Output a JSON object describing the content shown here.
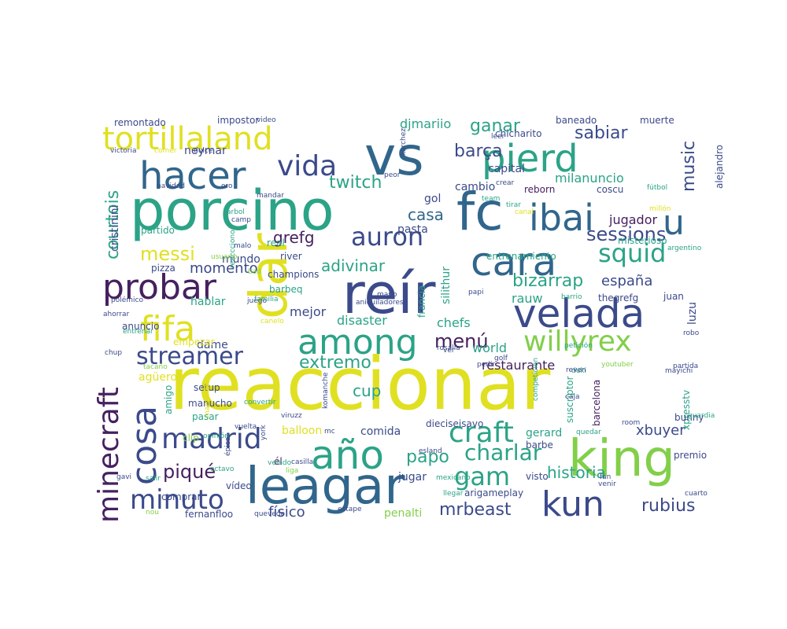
{
  "palette": {
    "y": "#e0e022",
    "g": "#82cf4a",
    "t": "#2ba387",
    "b": "#31668c",
    "n": "#3b4a8a",
    "p": "#46205f"
  },
  "words": [
    {
      "text": "reaccionar",
      "color": "y"
    },
    {
      "text": "porcino",
      "color": "t"
    },
    {
      "text": "vs",
      "color": "b"
    },
    {
      "text": "fc",
      "color": "b"
    },
    {
      "text": "reír",
      "color": "n"
    },
    {
      "text": "leagar",
      "color": "b"
    },
    {
      "text": "king",
      "color": "g"
    },
    {
      "text": "dar",
      "color": "y"
    },
    {
      "text": "pierd",
      "color": "t"
    },
    {
      "text": "cara",
      "color": "b"
    },
    {
      "text": "velada",
      "color": "n"
    },
    {
      "text": "among",
      "color": "t"
    },
    {
      "text": "año",
      "color": "t"
    },
    {
      "text": "ibai",
      "color": "b"
    },
    {
      "text": "u",
      "color": "b"
    },
    {
      "text": "hacer",
      "color": "b"
    },
    {
      "text": "tortillaland",
      "color": "y"
    },
    {
      "text": "probar",
      "color": "p"
    },
    {
      "text": "fifa",
      "color": "y"
    },
    {
      "text": "madrid",
      "color": "n"
    },
    {
      "text": "cosa",
      "color": "n"
    },
    {
      "text": "minecraft",
      "color": "p"
    },
    {
      "text": "kun",
      "color": "n"
    },
    {
      "text": "craft",
      "color": "t"
    },
    {
      "text": "willyrex",
      "color": "g"
    },
    {
      "text": "squid",
      "color": "t"
    },
    {
      "text": "auron",
      "color": "n"
    },
    {
      "text": "vida",
      "color": "n"
    },
    {
      "text": "minuto",
      "color": "n"
    },
    {
      "text": "streamer",
      "color": "n"
    },
    {
      "text": "gam",
      "color": "t"
    },
    {
      "text": "charlar",
      "color": "t"
    },
    {
      "text": "sessions",
      "color": "n"
    },
    {
      "text": "bizarrap",
      "color": "t"
    },
    {
      "text": "music",
      "color": "n"
    },
    {
      "text": "sabiar",
      "color": "n"
    },
    {
      "text": "ganar",
      "color": "t"
    },
    {
      "text": "messi",
      "color": "y"
    },
    {
      "text": "piqué",
      "color": "p"
    },
    {
      "text": "twitch",
      "color": "t"
    },
    {
      "text": "menú",
      "color": "p"
    },
    {
      "text": "extremo",
      "color": "t"
    },
    {
      "text": "mrbeast",
      "color": "n"
    },
    {
      "text": "rubius",
      "color": "n"
    },
    {
      "text": "historia",
      "color": "t"
    },
    {
      "text": "papo",
      "color": "t"
    },
    {
      "text": "cup",
      "color": "t"
    },
    {
      "text": "courtois",
      "color": "t"
    },
    {
      "text": "barça",
      "color": "n"
    },
    {
      "text": "grefg",
      "color": "p"
    },
    {
      "text": "adivinar",
      "color": "t"
    },
    {
      "text": "casa",
      "color": "b"
    },
    {
      "text": "momento",
      "color": "n"
    },
    {
      "text": "xbuyer",
      "color": "n"
    },
    {
      "text": "españa",
      "color": "n"
    },
    {
      "text": "jugador",
      "color": "p"
    },
    {
      "text": "milanuncio",
      "color": "t"
    },
    {
      "text": "capital",
      "color": "n"
    },
    {
      "text": "cambio",
      "color": "n"
    },
    {
      "text": "físico",
      "color": "n"
    },
    {
      "text": "djmariio",
      "color": "t"
    },
    {
      "text": "cristinini",
      "color": "n"
    },
    {
      "text": "rauw",
      "color": "t"
    },
    {
      "text": "mejor",
      "color": "n"
    },
    {
      "text": "disaster",
      "color": "t"
    },
    {
      "text": "chefs",
      "color": "t"
    },
    {
      "text": "world",
      "color": "t"
    },
    {
      "text": "restaurante",
      "color": "p"
    },
    {
      "text": "neymar",
      "color": "n"
    },
    {
      "text": "gol",
      "color": "n"
    },
    {
      "text": "pasta",
      "color": "n"
    },
    {
      "text": "coscu",
      "color": "n"
    },
    {
      "text": "reborn",
      "color": "p"
    },
    {
      "text": "dame",
      "color": "n"
    },
    {
      "text": "comida",
      "color": "n"
    },
    {
      "text": "jugar",
      "color": "n"
    },
    {
      "text": "gerard",
      "color": "t"
    },
    {
      "text": "penalti",
      "color": "g"
    },
    {
      "text": "balloon",
      "color": "y"
    },
    {
      "text": "pizza",
      "color": "n"
    },
    {
      "text": "mundo",
      "color": "n"
    },
    {
      "text": "partido",
      "color": "t"
    },
    {
      "text": "river",
      "color": "n"
    },
    {
      "text": "real",
      "color": "t"
    },
    {
      "text": "barbeq",
      "color": "t"
    },
    {
      "text": "hablar",
      "color": "t"
    },
    {
      "text": "thegrefg",
      "color": "n"
    },
    {
      "text": "juan",
      "color": "n"
    },
    {
      "text": "luzu",
      "color": "n"
    },
    {
      "text": "silithur",
      "color": "t"
    },
    {
      "text": "francia",
      "color": "t"
    },
    {
      "text": "champions",
      "color": "n"
    },
    {
      "text": "entrenamiento",
      "color": "t"
    },
    {
      "text": "misterioso",
      "color": "t"
    },
    {
      "text": "alejandro",
      "color": "n"
    },
    {
      "text": "muerte",
      "color": "n"
    },
    {
      "text": "baneado",
      "color": "n"
    },
    {
      "text": "chicharito",
      "color": "n"
    },
    {
      "text": "impostor",
      "color": "n"
    },
    {
      "text": "remontado",
      "color": "n"
    },
    {
      "text": "agüero",
      "color": "y"
    },
    {
      "text": "setup",
      "color": "n"
    },
    {
      "text": "amigo",
      "color": "t"
    },
    {
      "text": "anuncio",
      "color": "n"
    },
    {
      "text": "manucho",
      "color": "n"
    },
    {
      "text": "pasar",
      "color": "t"
    },
    {
      "text": "vídeo",
      "color": "n"
    },
    {
      "text": "comprar",
      "color": "n"
    },
    {
      "text": "fernanfloo",
      "color": "n"
    },
    {
      "text": "clip",
      "color": "g"
    },
    {
      "text": "empezar",
      "color": "y"
    },
    {
      "text": "barbe",
      "color": "n"
    },
    {
      "text": "visto",
      "color": "n"
    },
    {
      "text": "arigameplay",
      "color": "n"
    },
    {
      "text": "barcelona",
      "color": "p"
    },
    {
      "text": "suscriptor",
      "color": "t"
    },
    {
      "text": "xpresstv",
      "color": "t"
    },
    {
      "text": "bunny",
      "color": "n"
    },
    {
      "text": "premio",
      "color": "n"
    },
    {
      "text": "dieciseisavo",
      "color": "n"
    },
    {
      "text": "él",
      "color": "p"
    },
    {
      "text": "rosalia",
      "color": "n"
    },
    {
      "text": "fan",
      "color": "n"
    },
    {
      "text": "venir",
      "color": "n"
    },
    {
      "text": "liga",
      "color": "g"
    },
    {
      "text": "casilla",
      "color": "n"
    },
    {
      "text": "esland",
      "color": "n"
    },
    {
      "text": "mexicano",
      "color": "t"
    },
    {
      "text": "llegar",
      "color": "t"
    },
    {
      "text": "cuarto",
      "color": "n"
    },
    {
      "text": "mayichi",
      "color": "n"
    },
    {
      "text": "guardia",
      "color": "t"
    },
    {
      "text": "partida",
      "color": "n"
    },
    {
      "text": "youtuber",
      "color": "g"
    },
    {
      "text": "robo",
      "color": "n"
    },
    {
      "text": "duki",
      "color": "t"
    },
    {
      "text": "golf",
      "color": "n"
    },
    {
      "text": "pedir",
      "color": "n"
    },
    {
      "text": "ver",
      "color": "n"
    },
    {
      "text": "caja",
      "color": "n"
    },
    {
      "text": "competición",
      "color": "t"
    },
    {
      "text": "quedar",
      "color": "t"
    },
    {
      "text": "room",
      "color": "n"
    },
    {
      "text": "comer",
      "color": "y"
    },
    {
      "text": "dulce",
      "color": "n"
    },
    {
      "text": "victoria",
      "color": "n"
    },
    {
      "text": "video",
      "color": "n"
    },
    {
      "text": "mandar",
      "color": "n"
    },
    {
      "text": "oro",
      "color": "n"
    },
    {
      "text": "navidad",
      "color": "n"
    },
    {
      "text": "árbol",
      "color": "t"
    },
    {
      "text": "camp",
      "color": "n"
    },
    {
      "text": "reaccciono",
      "color": "t"
    },
    {
      "text": "usuario",
      "color": "g"
    },
    {
      "text": "malo",
      "color": "n"
    },
    {
      "text": "bad",
      "color": "g"
    },
    {
      "text": "juego",
      "color": "n"
    },
    {
      "text": "familia",
      "color": "t"
    },
    {
      "text": "polémico",
      "color": "n"
    },
    {
      "text": "aniquiladores",
      "color": "n"
    },
    {
      "text": "ahorrar",
      "color": "n"
    },
    {
      "text": "entrenar",
      "color": "t"
    },
    {
      "text": "canelo",
      "color": "y"
    },
    {
      "text": "chup",
      "color": "n"
    },
    {
      "text": "tacaño",
      "color": "g"
    },
    {
      "text": "mano",
      "color": "n"
    },
    {
      "text": "papi",
      "color": "n"
    },
    {
      "text": "barrio",
      "color": "t"
    },
    {
      "text": "team",
      "color": "t"
    },
    {
      "text": "canal",
      "color": "y"
    },
    {
      "text": "tirar",
      "color": "t"
    },
    {
      "text": "fútbol",
      "color": "t"
    },
    {
      "text": "millón",
      "color": "y"
    },
    {
      "text": "argentino",
      "color": "t"
    },
    {
      "text": "reven",
      "color": "n"
    },
    {
      "text": "petición",
      "color": "t"
    },
    {
      "text": "leer",
      "color": "n"
    },
    {
      "text": "crear",
      "color": "n"
    },
    {
      "text": "peor",
      "color": "n"
    },
    {
      "text": "karchez",
      "color": "n"
    },
    {
      "text": "velado",
      "color": "t"
    },
    {
      "text": "viruzz",
      "color": "n"
    },
    {
      "text": "marsoneta",
      "color": "y"
    },
    {
      "text": "convertir",
      "color": "t"
    },
    {
      "text": "opinión",
      "color": "t"
    },
    {
      "text": "vuelta",
      "color": "n"
    },
    {
      "text": "salir",
      "color": "t"
    },
    {
      "text": "épico",
      "color": "n"
    },
    {
      "text": "gavi",
      "color": "n"
    },
    {
      "text": "octavo",
      "color": "t"
    },
    {
      "text": "nou",
      "color": "g"
    },
    {
      "text": "quevedo",
      "color": "n"
    },
    {
      "text": "estape",
      "color": "n"
    },
    {
      "text": "mc",
      "color": "n"
    },
    {
      "text": "york",
      "color": "n"
    },
    {
      "text": "komanche",
      "color": "n"
    },
    {
      "text": "eliminado",
      "color": "t"
    },
    {
      "text": "mundial",
      "color": "n"
    }
  ]
}
